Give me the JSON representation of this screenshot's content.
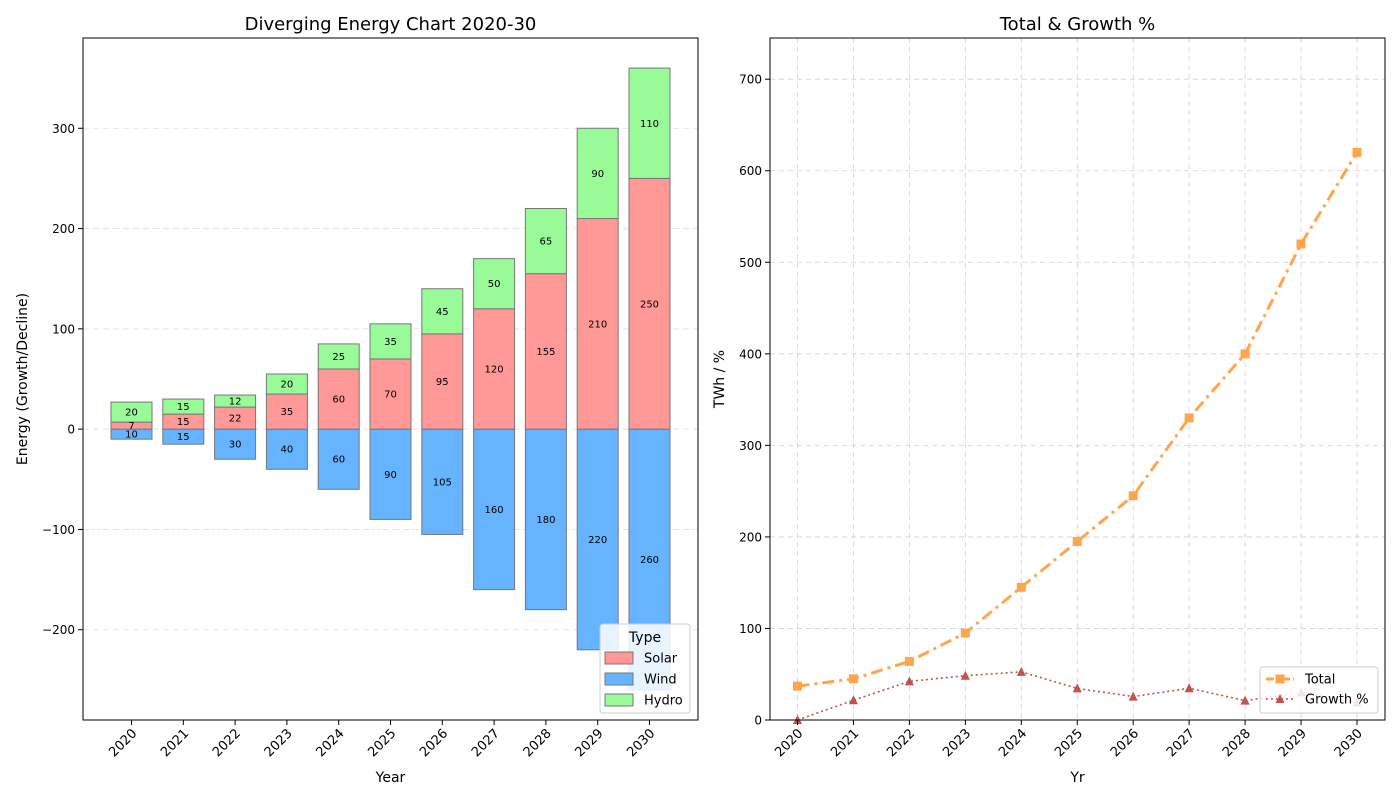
{
  "chart_data": [
    {
      "type": "bar",
      "title": "Diverging Energy Chart 2020-30",
      "xlabel": "Year",
      "ylabel": "Energy (Growth/Decline)",
      "categories": [
        "2020",
        "2021",
        "2022",
        "2023",
        "2024",
        "2025",
        "2026",
        "2027",
        "2028",
        "2029",
        "2030"
      ],
      "ylim": [
        -290,
        390
      ],
      "yticks": [
        -200,
        -100,
        0,
        100,
        200,
        300
      ],
      "grid": "y-dashed",
      "series": [
        {
          "name": "Solar",
          "color": "#ff9896",
          "direction": "up",
          "values": [
            7,
            15,
            22,
            35,
            60,
            70,
            95,
            120,
            155,
            210,
            250
          ]
        },
        {
          "name": "Wind",
          "color": "#66b3ff",
          "direction": "down",
          "values": [
            10,
            15,
            30,
            40,
            60,
            90,
            105,
            160,
            180,
            220,
            260
          ]
        },
        {
          "name": "Hydro",
          "color": "#98fb98",
          "direction": "up",
          "values": [
            20,
            15,
            12,
            20,
            25,
            35,
            45,
            50,
            65,
            90,
            110
          ]
        }
      ],
      "legend": {
        "title": "Type",
        "placement": "lower-right"
      }
    },
    {
      "type": "line",
      "title": "Total & Growth %",
      "xlabel": "Yr",
      "ylabel": "TWh / %",
      "x": [
        "2020",
        "2021",
        "2022",
        "2023",
        "2024",
        "2025",
        "2026",
        "2027",
        "2028",
        "2029",
        "2030"
      ],
      "ylim": [
        0,
        745
      ],
      "yticks": [
        0,
        100,
        200,
        300,
        400,
        500,
        600,
        700
      ],
      "grid": "both-dashed",
      "series": [
        {
          "name": "Total",
          "color": "#ffa64d",
          "marker": "square",
          "style": "dash-dot",
          "values": [
            37,
            45,
            64,
            95,
            145,
            195,
            245,
            330,
            400,
            520,
            620
          ]
        },
        {
          "name": "Growth %",
          "color": "#c1524f",
          "marker": "triangle",
          "style": "dotted",
          "values": [
            0,
            21.6,
            42.2,
            48.4,
            52.6,
            34.5,
            25.6,
            34.7,
            21.2,
            30,
            19.2
          ]
        }
      ],
      "legend": {
        "placement": "lower-right"
      }
    }
  ]
}
